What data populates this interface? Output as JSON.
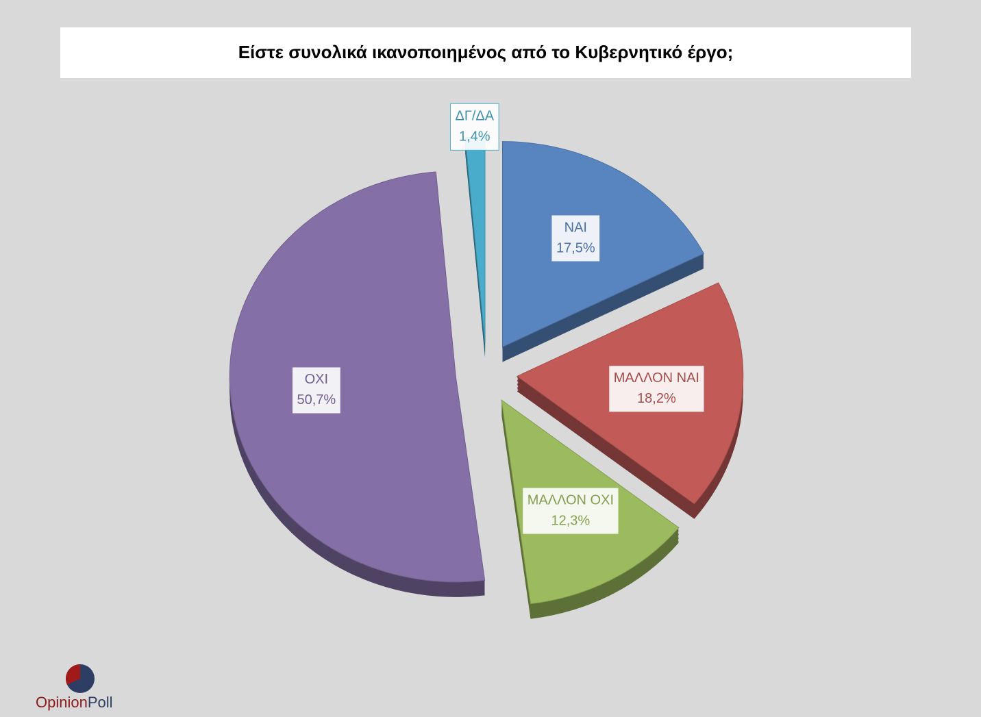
{
  "chart_data": {
    "type": "pie",
    "title": "Είστε συνολικά ικανοποιημένος από το Κυβερνητικό έργο;",
    "categories": [
      "ΝΑΙ",
      "ΜΑΛΛΟΝ ΝΑΙ",
      "ΜΑΛΛΟΝ ΟΧΙ",
      "ΟΧΙ",
      "ΔΓ/ΔΑ"
    ],
    "values": [
      17.5,
      18.2,
      12.3,
      50.7,
      1.4
    ],
    "value_labels": [
      "17,5%",
      "18,2%",
      "12,3%",
      "50,7%",
      "1,4%"
    ],
    "colors": [
      "#5884c0",
      "#c25b58",
      "#9bbb5e",
      "#8470a6",
      "#4aaccb"
    ]
  },
  "logo": [
    "Opinion",
    "Poll"
  ]
}
